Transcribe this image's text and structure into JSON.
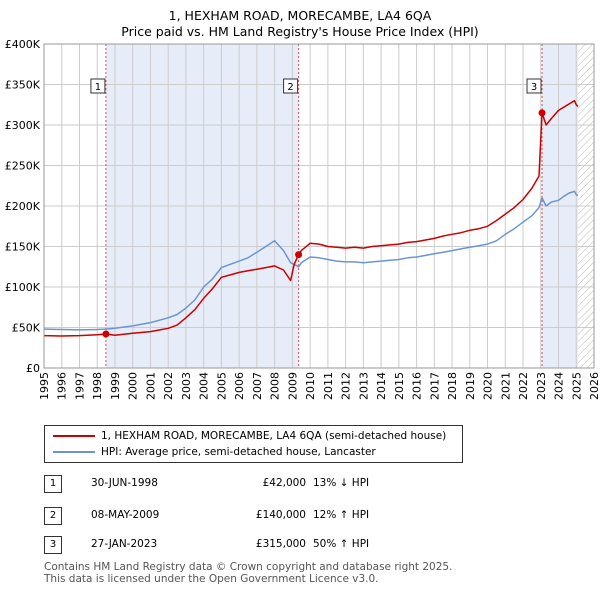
{
  "title_line1": "1, HEXHAM ROAD, MORECAMBE, LA4 6QA",
  "title_line2": "Price paid vs. HM Land Registry's House Price Index (HPI)",
  "colors": {
    "property": "#cc0000",
    "hpi": "#6a96cf",
    "shade": "#e6ecf8",
    "grid": "#cccccc",
    "vline": "#e05050"
  },
  "chart_data": {
    "type": "line",
    "xlim": [
      1995,
      2026
    ],
    "ylim": [
      0,
      400000
    ],
    "x_ticks": [
      "1995",
      "1996",
      "1997",
      "1998",
      "1999",
      "2000",
      "2001",
      "2002",
      "2003",
      "2004",
      "2005",
      "2006",
      "2007",
      "2008",
      "2009",
      "2010",
      "2011",
      "2012",
      "2013",
      "2014",
      "2015",
      "2016",
      "2017",
      "2018",
      "2019",
      "2020",
      "2021",
      "2022",
      "2023",
      "2024",
      "2025",
      "2026"
    ],
    "y_ticks": [
      {
        "value": 0,
        "label": "£0"
      },
      {
        "value": 50000,
        "label": "£50K"
      },
      {
        "value": 100000,
        "label": "£100K"
      },
      {
        "value": 150000,
        "label": "£150K"
      },
      {
        "value": 200000,
        "label": "£200K"
      },
      {
        "value": 250000,
        "label": "£250K"
      },
      {
        "value": 300000,
        "label": "£300K"
      },
      {
        "value": 350000,
        "label": "£350K"
      },
      {
        "value": 400000,
        "label": "£400K"
      }
    ],
    "series": [
      {
        "name": "1, HEXHAM ROAD, MORECAMBE, LA4 6QA (semi-detached house)",
        "color": "#cc0000",
        "x": [
          1995.0,
          1996.0,
          1997.0,
          1998.0,
          1998.49,
          1999.0,
          2000.0,
          2001.0,
          2002.0,
          2002.5,
          2003.0,
          2003.5,
          2004.0,
          2004.5,
          2005.0,
          2005.5,
          2006.0,
          2006.5,
          2007.0,
          2007.5,
          2008.0,
          2008.5,
          2008.9,
          2009.1,
          2009.35,
          2009.5,
          2010.0,
          2010.5,
          2011.0,
          2011.5,
          2012.0,
          2012.5,
          2013.0,
          2013.5,
          2014.0,
          2014.5,
          2015.0,
          2015.5,
          2016.0,
          2016.5,
          2017.0,
          2017.5,
          2018.0,
          2018.5,
          2019.0,
          2019.5,
          2020.0,
          2020.5,
          2021.0,
          2021.5,
          2022.0,
          2022.5,
          2022.9,
          2023.07,
          2023.3,
          2023.6,
          2024.0,
          2024.3,
          2024.6,
          2024.9,
          2025.0,
          2025.1
        ],
        "y": [
          40000,
          39500,
          40000,
          41000,
          42000,
          40500,
          43000,
          45000,
          49000,
          53000,
          62000,
          72000,
          86000,
          98000,
          112000,
          115000,
          118000,
          120000,
          122000,
          124000,
          126000,
          121000,
          108000,
          128000,
          140000,
          145000,
          154000,
          153000,
          150000,
          149000,
          148000,
          149000,
          148000,
          150000,
          151000,
          152000,
          153000,
          155000,
          156000,
          158000,
          160000,
          163000,
          165000,
          167000,
          170000,
          172000,
          175000,
          182000,
          190000,
          198000,
          208000,
          222000,
          237000,
          315000,
          300000,
          308000,
          318000,
          322000,
          326000,
          330000,
          325000,
          323000
        ]
      },
      {
        "name": "HPI: Average price, semi-detached house, Lancaster",
        "color": "#6a96cf",
        "x": [
          1995.0,
          1996.0,
          1997.0,
          1998.0,
          1998.49,
          1999.0,
          2000.0,
          2001.0,
          2002.0,
          2002.5,
          2003.0,
          2003.5,
          2004.0,
          2004.5,
          2005.0,
          2005.5,
          2006.0,
          2006.5,
          2007.0,
          2007.5,
          2008.0,
          2008.5,
          2008.9,
          2009.1,
          2009.35,
          2009.5,
          2010.0,
          2010.5,
          2011.0,
          2011.5,
          2012.0,
          2012.5,
          2013.0,
          2013.5,
          2014.0,
          2014.5,
          2015.0,
          2015.5,
          2016.0,
          2016.5,
          2017.0,
          2017.5,
          2018.0,
          2018.5,
          2019.0,
          2019.5,
          2020.0,
          2020.5,
          2021.0,
          2021.5,
          2022.0,
          2022.5,
          2022.9,
          2023.07,
          2023.3,
          2023.6,
          2024.0,
          2024.3,
          2024.6,
          2024.9,
          2025.0,
          2025.1
        ],
        "y": [
          48000,
          47500,
          47000,
          47500,
          48000,
          49000,
          52000,
          56000,
          62000,
          66000,
          74000,
          84000,
          100000,
          110000,
          124000,
          128000,
          132000,
          136000,
          143000,
          150000,
          157000,
          145000,
          130000,
          128000,
          125000,
          130000,
          137000,
          136000,
          134000,
          132000,
          131000,
          131000,
          130000,
          131000,
          132000,
          133000,
          134000,
          136000,
          137000,
          139000,
          141000,
          143000,
          145000,
          147000,
          149000,
          151000,
          153000,
          157000,
          165000,
          172000,
          180000,
          188000,
          198000,
          210000,
          200000,
          205000,
          207000,
          212000,
          216000,
          218000,
          214000,
          213000
        ]
      }
    ],
    "transactions": [
      {
        "label": "1",
        "date": "30-JUN-1998",
        "x": 1998.49,
        "price": "£42,000",
        "value": 42000,
        "diff": "13% ↓ HPI"
      },
      {
        "label": "2",
        "date": "08-MAY-2009",
        "x": 2009.35,
        "price": "£140,000",
        "value": 140000,
        "diff": "12% ↑ HPI"
      },
      {
        "label": "3",
        "date": "27-JAN-2023",
        "x": 2023.07,
        "price": "£315,000",
        "value": 315000,
        "diff": "50% ↑ HPI"
      }
    ],
    "shaded_spans": [
      [
        1998.49,
        2009.35
      ],
      [
        2023.07,
        2025.1
      ]
    ],
    "hatch_from": 2025.1,
    "legend_position": "below"
  },
  "footer_line1": "Contains HM Land Registry data © Crown copyright and database right 2025.",
  "footer_line2": "This data is licensed under the Open Government Licence v3.0."
}
